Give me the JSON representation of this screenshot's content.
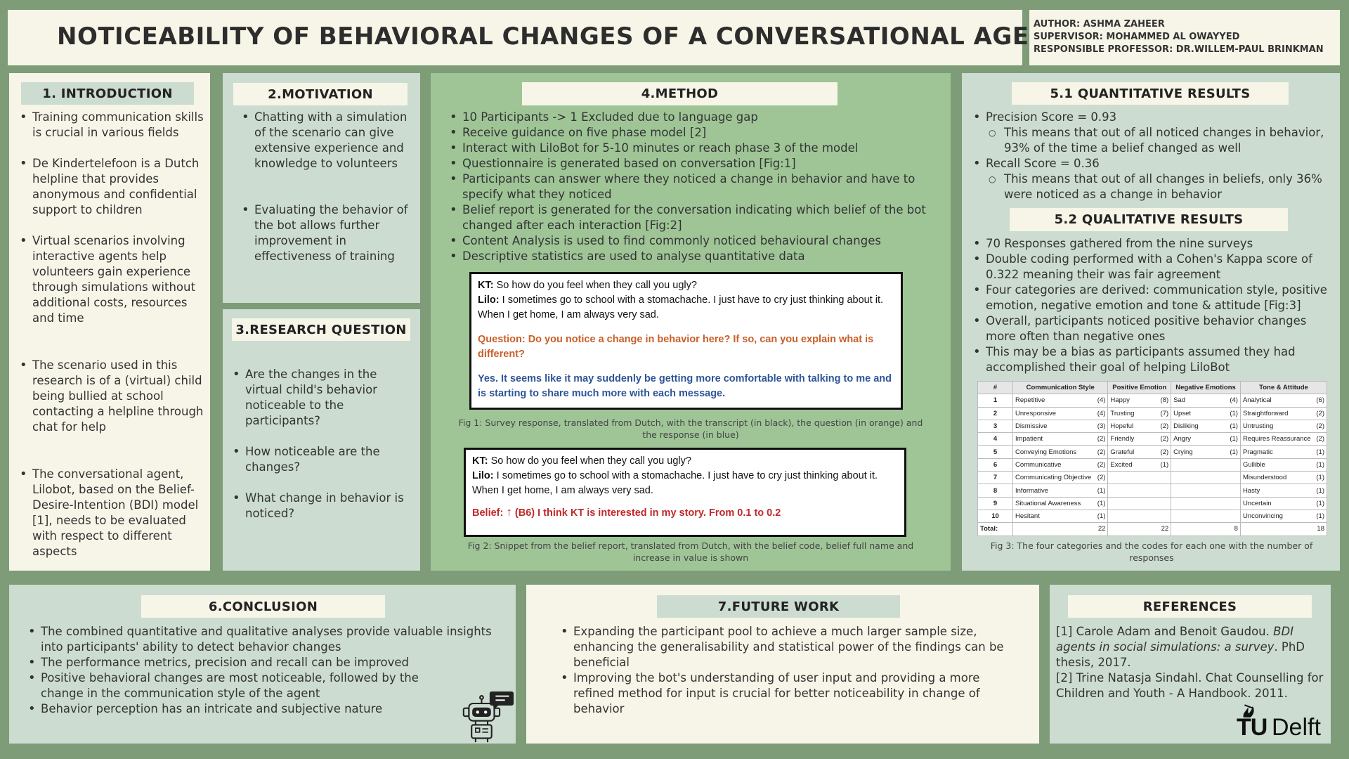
{
  "title": "NOTICEABILITY OF BEHAVIORAL CHANGES OF A CONVERSATIONAL AGENT",
  "credits": [
    "AUTHOR: ASHMA ZAHEER",
    "SUPERVISOR: MOHAMMED AL OWAYYED",
    "RESPONSIBLE PROFESSOR: DR.WILLEM-PAUL BRINKMAN"
  ],
  "intro": {
    "heading": "1. INTRODUCTION",
    "items": [
      "Training communication skills is crucial in various fields",
      "De Kindertelefoon is a Dutch helpline that provides anonymous and confidential support to children",
      "Virtual scenarios involving interactive agents help volunteers gain experience through simulations without additional costs, resources and time",
      "The scenario used in this research is of a (virtual) child being bullied at school contacting a helpline through chat for help",
      "The conversational agent, Lilobot, based on the Belief-Desire-Intention (BDI) model [1], needs to be evaluated with respect to different aspects"
    ]
  },
  "motivation": {
    "heading": "2.MOTIVATION",
    "items": [
      "Chatting with a simulation of the scenario can give extensive experience and knowledge to volunteers",
      "Evaluating the behavior of the bot allows further improvement  in effectiveness of training"
    ]
  },
  "research": {
    "heading": "3.RESEARCH QUESTION",
    "items": [
      "Are the changes in the virtual child's behavior noticeable to the participants?",
      "How noticeable are the changes?",
      "What change in behavior is noticed?"
    ]
  },
  "method": {
    "heading": "4.METHOD",
    "items": [
      "10 Participants -> 1 Excluded due to language gap",
      "Receive guidance on five phase model [2]",
      "Interact with LiloBot for 5-10 minutes or reach phase 3 of the model",
      "Questionnaire is generated based on conversation [Fig:1]",
      "Participants can answer where they noticed a change in behavior and have to specify what they noticed",
      "Belief report is generated for the conversation indicating which belief of the bot changed after each interaction [Fig:2]",
      "Content Analysis is used to find commonly noticed behavioural changes",
      "Descriptive statistics are used  to analyse quantitative data"
    ],
    "fig1": {
      "kt_label": "KT:",
      "kt_text": " So how do you feel when they call you ugly?",
      "lilo_label": "Lilo:",
      "lilo_text": " I sometimes go to school with a stomachache. I just have to cry just thinking about it. When I get home, I am always very sad.",
      "question": "Question: Do you notice a change in behavior here? If so, can you explain what is different?",
      "answer": "Yes. It seems like it may suddenly be getting more comfortable with talking to me and is starting to share much more with each message.",
      "caption": "Fig 1: Survey response, translated from Dutch, with the transcript (in black), the question (in orange) and the response (in blue)"
    },
    "fig2": {
      "kt_label": "KT:",
      "kt_text": " So how do you feel when they call you ugly?",
      "lilo_label": "Lilo:",
      "lilo_text": " I sometimes go to school with a stomachache. I just have to cry just thinking about it. When I get home, I am always very sad.",
      "belief_label": "Belief:",
      "belief_arrow": "↑",
      "belief_text": " (B6) I think KT is interested in my story. From 0.1 to 0.2",
      "caption": "Fig 2: Snippet from the belief report, translated from Dutch, with the belief code, belief full name and increase in value is shown"
    }
  },
  "quant": {
    "heading": "5.1 QUANTITATIVE RESULTS",
    "items": [
      {
        "text": "Precision Score = 0.93",
        "sub": "This means that out of all noticed changes in behavior, 93% of the time a belief changed as well"
      },
      {
        "text": "Recall Score = 0.36",
        "sub": "This means that out of all changes in beliefs, only 36% were noticed as a change in behavior"
      }
    ]
  },
  "qual": {
    "heading": "5.2 QUALITATIVE RESULTS",
    "items": [
      "70 Responses gathered from the nine surveys",
      "Double coding performed with a Cohen's Kappa score of 0.322 meaning their was fair agreement",
      "Four categories are derived: communication style, positive emotion, negative emotion and tone & attitude [Fig:3]",
      "Overall, participants noticed positive behavior changes more often than negative ones",
      "This may be a bias as participants assumed they had accomplished their goal of helping LiloBot"
    ],
    "table": {
      "headers": [
        "#",
        "Communication Style",
        "Positive Emotion",
        "Negative Emotions",
        "Tone & Attitude"
      ],
      "rows": [
        [
          "1",
          "Repetitive",
          "(4)",
          "Happy",
          "(8)",
          "Sad",
          "(4)",
          "Analytical",
          "(6)"
        ],
        [
          "2",
          "Unresponsive",
          "(4)",
          "Trusting",
          "(7)",
          "Upset",
          "(1)",
          "Straightforward",
          "(2)"
        ],
        [
          "3",
          "Dismissive",
          "(3)",
          "Hopeful",
          "(2)",
          "Disliking",
          "(1)",
          "Untrusting",
          "(2)"
        ],
        [
          "4",
          "Impatient",
          "(2)",
          "Friendly",
          "(2)",
          "Angry",
          "(1)",
          "Requires Reassurance",
          "(2)"
        ],
        [
          "5",
          "Conveying Emotions",
          "(2)",
          "Grateful",
          "(2)",
          "Crying",
          "(1)",
          "Pragmatic",
          "(1)"
        ],
        [
          "6",
          "Communicative",
          "(2)",
          "Excited",
          "(1)",
          "",
          "",
          "Gullible",
          "(1)"
        ],
        [
          "7",
          "Communicating Objective",
          "(2)",
          "",
          "",
          "",
          "",
          "Misunderstood",
          "(1)"
        ],
        [
          "8",
          "Informative",
          "(1)",
          "",
          "",
          "",
          "",
          "Hasty",
          "(1)"
        ],
        [
          "9",
          "Situational Awareness",
          "(1)",
          "",
          "",
          "",
          "",
          "Uncertain",
          "(1)"
        ],
        [
          "10",
          "Hesitant",
          "(1)",
          "",
          "",
          "",
          "",
          "Unconvincing",
          "(1)"
        ],
        [
          "Total:",
          "",
          "22",
          "",
          "22",
          "",
          "8",
          "",
          "18"
        ]
      ],
      "caption": "Fig 3: The four categories and the codes for each one with the number of responses"
    }
  },
  "conclusion": {
    "heading": "6.CONCLUSION",
    "items": [
      " The combined quantitative and qualitative analyses provide valuable insights into participants' ability to detect behavior changes",
      "The performance metrics, precision and recall can be improved",
      "Positive behavioral changes are most noticeable, followed by the change in the communication style of the agent",
      "Behavior perception has an intricate and subjective nature"
    ],
    "icon": "robot-chat-icon"
  },
  "future": {
    "heading": "7.FUTURE WORK",
    "items": [
      "Expanding the participant pool to achieve a much larger sample size, enhancing the generalisability and statistical power of the findings can be beneficial",
      "Improving the bot's understanding of user input and providing a more refined method for input is crucial for better noticeability in change of behavior"
    ]
  },
  "references": {
    "heading": "REFERENCES",
    "ref1_pre": "[1] Carole Adam and Benoit Gaudou. ",
    "ref1_title": "BDI agents in social simulations: a survey",
    "ref1_post": ". PhD thesis, 2017.",
    "ref2": "[2] Trine Natasja Sindahl. Chat Counselling for Children and Youth - A Handbook. 2011.",
    "logo_text_tu": "TU",
    "logo_text_delft": "Delft"
  },
  "colors": {
    "background": "#7d9c77",
    "cream": "#f6f5e7",
    "mint": "#ccdcd0",
    "green": "#9fc597",
    "orange_text": "#c8602a",
    "blue_text": "#2f5597",
    "red_text": "#c0282a"
  }
}
